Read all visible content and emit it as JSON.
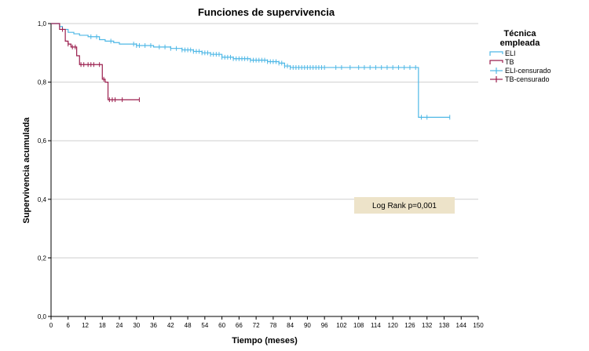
{
  "chart_data": {
    "type": "line",
    "title": "Funciones de supervivencia",
    "xlabel": "Tiempo (meses)",
    "ylabel": "Supervivencia acumulada",
    "xlim": [
      0,
      150
    ],
    "ylim": [
      0,
      1
    ],
    "x_ticks": [
      0,
      6,
      12,
      18,
      24,
      30,
      36,
      42,
      48,
      54,
      60,
      66,
      72,
      78,
      84,
      90,
      96,
      102,
      108,
      114,
      120,
      126,
      132,
      138,
      144,
      150
    ],
    "x_tick_labels": [
      "0",
      "6",
      "12",
      "18",
      "24",
      "30",
      "36",
      "42",
      "48",
      "54",
      "60",
      "66",
      "72",
      "78",
      "84",
      "90",
      "96",
      "102",
      "108",
      "114",
      "120",
      "126",
      "132",
      "138",
      "144",
      "150"
    ],
    "y_ticks": [
      0,
      0.2,
      0.4,
      0.6,
      0.8,
      1.0
    ],
    "y_tick_labels": [
      "0,0",
      "0,2",
      "0,4",
      "0,6",
      "0,8",
      "1,0"
    ],
    "gridlines": "horizontal",
    "legend": {
      "title": "Técnica empleada",
      "placement": "right",
      "entries": [
        "ELI",
        "TB",
        "ELI-censurado",
        "TB-censurado"
      ]
    },
    "annotation": "Log Rank p=0,001",
    "series": [
      {
        "name": "ELI",
        "color": "#4fb8e6",
        "step_points": [
          [
            0,
            1.0
          ],
          [
            3,
            0.99
          ],
          [
            4,
            0.98
          ],
          [
            6,
            0.97
          ],
          [
            8,
            0.965
          ],
          [
            10,
            0.96
          ],
          [
            13,
            0.955
          ],
          [
            17,
            0.945
          ],
          [
            19,
            0.94
          ],
          [
            22,
            0.935
          ],
          [
            24,
            0.93
          ],
          [
            30,
            0.925
          ],
          [
            36,
            0.92
          ],
          [
            42,
            0.915
          ],
          [
            46,
            0.91
          ],
          [
            50,
            0.905
          ],
          [
            53,
            0.9
          ],
          [
            56,
            0.895
          ],
          [
            60,
            0.885
          ],
          [
            64,
            0.88
          ],
          [
            70,
            0.875
          ],
          [
            76,
            0.87
          ],
          [
            80,
            0.865
          ],
          [
            82,
            0.855
          ],
          [
            84,
            0.85
          ],
          [
            129,
            0.68
          ],
          [
            140,
            0.68
          ]
        ],
        "censored_x": [
          14,
          16,
          21,
          29,
          30,
          31,
          33,
          35,
          38,
          40,
          42,
          44,
          46,
          47,
          48,
          49,
          50,
          51,
          52,
          53,
          54,
          55,
          56,
          57,
          58,
          59,
          60,
          61,
          62,
          63,
          64,
          65,
          66,
          67,
          68,
          69,
          70,
          71,
          72,
          73,
          74,
          75,
          76,
          77,
          78,
          79,
          80,
          81,
          82,
          83,
          84,
          85,
          86,
          87,
          88,
          89,
          90,
          91,
          92,
          93,
          94,
          95,
          96,
          100,
          102,
          105,
          108,
          110,
          112,
          114,
          116,
          118,
          120,
          122,
          124,
          126,
          128,
          130,
          132,
          140
        ]
      },
      {
        "name": "TB",
        "color": "#9b1f4e",
        "step_points": [
          [
            0,
            1.0
          ],
          [
            3,
            0.98
          ],
          [
            5,
            0.94
          ],
          [
            6,
            0.93
          ],
          [
            7,
            0.92
          ],
          [
            9,
            0.89
          ],
          [
            10,
            0.86
          ],
          [
            18,
            0.81
          ],
          [
            19,
            0.8
          ],
          [
            20,
            0.74
          ],
          [
            31,
            0.74
          ]
        ],
        "censored_x": [
          4,
          6,
          7.5,
          8.5,
          10.5,
          11.5,
          13,
          14,
          15,
          17,
          18.5,
          20.5,
          21.5,
          22.5,
          25,
          31
        ]
      }
    ]
  }
}
